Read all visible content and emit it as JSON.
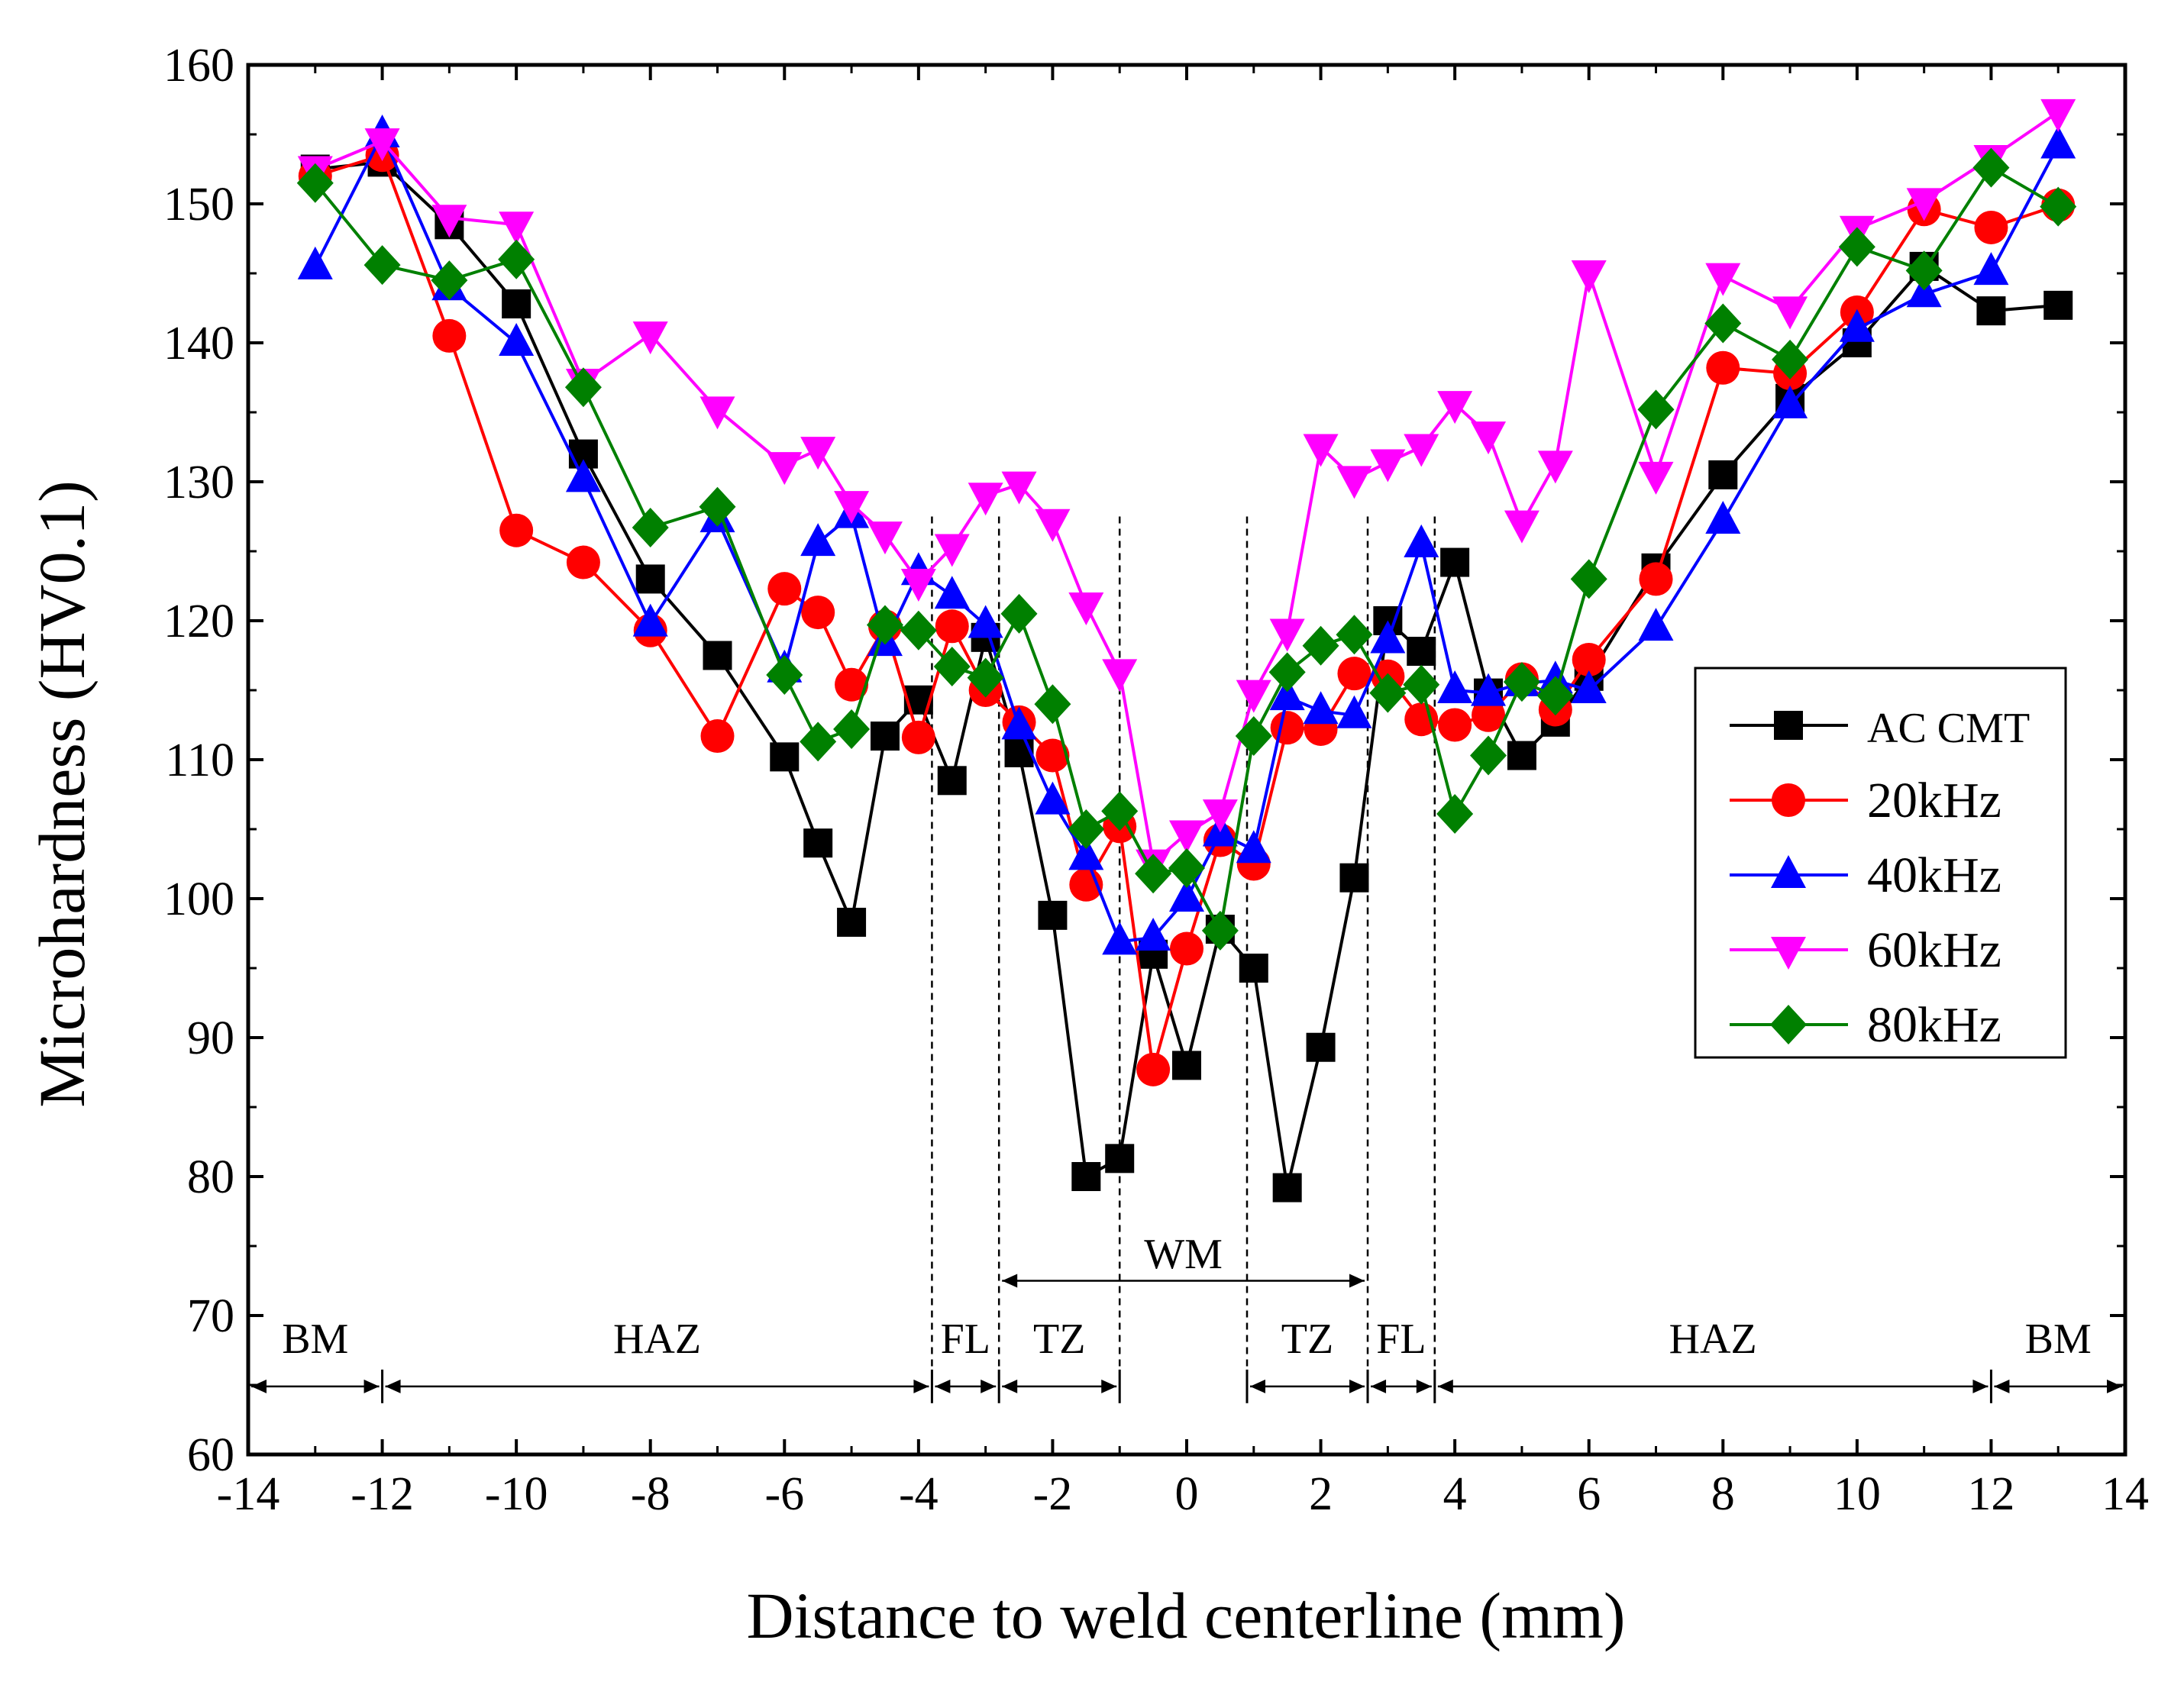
{
  "chart_data": {
    "type": "line",
    "title": "",
    "xlabel": "Distance to weld centerline (mm)",
    "ylabel": "Microhardness (HV0.1)",
    "xlim": [
      -14,
      14
    ],
    "ylim": [
      60,
      160
    ],
    "xticks": [
      -14,
      -12,
      -10,
      -8,
      -6,
      -4,
      -2,
      0,
      2,
      4,
      6,
      8,
      10,
      12,
      14
    ],
    "yticks": [
      60,
      70,
      80,
      90,
      100,
      110,
      120,
      130,
      140,
      150,
      160
    ],
    "legend_position": "right",
    "series": [
      {
        "name": "AC CMT",
        "color": "#000000",
        "marker": "square",
        "points": [
          [
            -13,
            152.5
          ],
          [
            -12,
            153
          ],
          [
            -11,
            148.5
          ],
          [
            -10,
            142.8
          ],
          [
            -9,
            132
          ],
          [
            -8,
            123
          ],
          [
            -7,
            117.5
          ],
          [
            -6,
            110.2
          ],
          [
            -5.5,
            104
          ],
          [
            -5,
            98.3
          ],
          [
            -4.5,
            111.7
          ],
          [
            -4,
            114.3
          ],
          [
            -3.5,
            108.5
          ],
          [
            -3,
            118.8
          ],
          [
            -2.5,
            110.5
          ],
          [
            -2,
            98.8
          ],
          [
            -1.5,
            80
          ],
          [
            -1,
            81.3
          ],
          [
            -0.5,
            96
          ],
          [
            0,
            88
          ],
          [
            0.5,
            97.8
          ],
          [
            1,
            95
          ],
          [
            1.5,
            79.2
          ],
          [
            2,
            89.3
          ],
          [
            2.5,
            101.5
          ],
          [
            3,
            120
          ],
          [
            3.5,
            117.8
          ],
          [
            4,
            124.2
          ],
          [
            4.5,
            114.8
          ],
          [
            5,
            110.3
          ],
          [
            5.5,
            112.7
          ],
          [
            6,
            116
          ],
          [
            7,
            123.8
          ],
          [
            8,
            130.5
          ],
          [
            9,
            136
          ],
          [
            10,
            140
          ],
          [
            11,
            145.5
          ],
          [
            12,
            142.3
          ],
          [
            13,
            142.7
          ]
        ]
      },
      {
        "name": "20kHz",
        "color": "#ff0000",
        "marker": "circle",
        "points": [
          [
            -13,
            152
          ],
          [
            -12,
            153.5
          ],
          [
            -11,
            140.5
          ],
          [
            -10,
            126.5
          ],
          [
            -9,
            124.2
          ],
          [
            -8,
            119.3
          ],
          [
            -7,
            111.7
          ],
          [
            -6,
            122.3
          ],
          [
            -5.5,
            120.6
          ],
          [
            -5,
            115.4
          ],
          [
            -4.5,
            119.6
          ],
          [
            -4,
            111.6
          ],
          [
            -3.5,
            119.6
          ],
          [
            -3,
            115
          ],
          [
            -2.5,
            112.7
          ],
          [
            -2,
            110.3
          ],
          [
            -1.5,
            101
          ],
          [
            -1,
            105.2
          ],
          [
            -0.5,
            87.7
          ],
          [
            0,
            96.4
          ],
          [
            0.5,
            104.2
          ],
          [
            1,
            102.5
          ],
          [
            1.5,
            112.3
          ],
          [
            2,
            112.2
          ],
          [
            2.5,
            116.2
          ],
          [
            3,
            116
          ],
          [
            3.5,
            112.9
          ],
          [
            4,
            112.5
          ],
          [
            4.5,
            113.2
          ],
          [
            5,
            115.8
          ],
          [
            5.5,
            113.6
          ],
          [
            6,
            117.2
          ],
          [
            7,
            123
          ],
          [
            8,
            138.2
          ],
          [
            9,
            137.8
          ],
          [
            10,
            142.2
          ],
          [
            11,
            149.6
          ],
          [
            12,
            148.3
          ],
          [
            13,
            149.9
          ]
        ]
      },
      {
        "name": "40kHz",
        "color": "#0000ff",
        "marker": "triangle-up",
        "points": [
          [
            -13,
            145.5
          ],
          [
            -12,
            155
          ],
          [
            -11,
            144
          ],
          [
            -10,
            140
          ],
          [
            -9,
            130.2
          ],
          [
            -8,
            119.8
          ],
          [
            -7,
            127.3
          ],
          [
            -6,
            116.5
          ],
          [
            -5.5,
            125.6
          ],
          [
            -5,
            127.6
          ],
          [
            -4.5,
            118.4
          ],
          [
            -4,
            123.5
          ],
          [
            -3.5,
            121.8
          ],
          [
            -3,
            119.7
          ],
          [
            -2.5,
            112.4
          ],
          [
            -2,
            107
          ],
          [
            -1.5,
            103
          ],
          [
            -1,
            96.9
          ],
          [
            -0.5,
            97.2
          ],
          [
            0,
            100
          ],
          [
            0.5,
            104.7
          ],
          [
            1,
            103.5
          ],
          [
            1.5,
            114.5
          ],
          [
            2,
            113.5
          ],
          [
            2.5,
            113.2
          ],
          [
            3,
            118.6
          ],
          [
            3.5,
            125.5
          ],
          [
            4,
            115
          ],
          [
            4.5,
            114.8
          ],
          [
            5,
            115.5
          ],
          [
            5.5,
            115.7
          ],
          [
            6,
            115
          ],
          [
            7,
            119.5
          ],
          [
            8,
            127.2
          ],
          [
            9,
            135.5
          ],
          [
            10,
            141
          ],
          [
            11,
            143.5
          ],
          [
            12,
            145.1
          ],
          [
            13,
            154.2
          ]
        ]
      },
      {
        "name": "60kHz",
        "color": "#ff00ff",
        "marker": "triangle-down",
        "points": [
          [
            -13,
            152.5
          ],
          [
            -12,
            154.5
          ],
          [
            -11,
            149
          ],
          [
            -10,
            148.5
          ],
          [
            -9,
            137.2
          ],
          [
            -8,
            140.6
          ],
          [
            -7,
            135.2
          ],
          [
            -6,
            131.2
          ],
          [
            -5.5,
            132.3
          ],
          [
            -5,
            128.4
          ],
          [
            -4.5,
            126.2
          ],
          [
            -4,
            122.8
          ],
          [
            -3.5,
            125.3
          ],
          [
            -3,
            129
          ],
          [
            -2.5,
            129.8
          ],
          [
            -2,
            127.1
          ],
          [
            -1.5,
            121.1
          ],
          [
            -1,
            116.3
          ],
          [
            -0.5,
            102.6
          ],
          [
            0,
            104.7
          ],
          [
            0.5,
            106.2
          ],
          [
            1,
            114.8
          ],
          [
            1.5,
            119.2
          ],
          [
            2,
            132.5
          ],
          [
            2.5,
            130.2
          ],
          [
            3,
            131.4
          ],
          [
            3.5,
            132.5
          ],
          [
            4,
            135.6
          ],
          [
            4.5,
            133.4
          ],
          [
            5,
            127
          ],
          [
            5.5,
            131.3
          ],
          [
            6,
            145
          ],
          [
            7,
            130.5
          ],
          [
            8,
            144.8
          ],
          [
            9,
            142.4
          ],
          [
            10,
            148.2
          ],
          [
            11,
            150.2
          ],
          [
            12,
            153.3
          ],
          [
            13,
            156.6
          ]
        ]
      },
      {
        "name": "80kHz",
        "color": "#008000",
        "marker": "diamond",
        "points": [
          [
            -13,
            151.5
          ],
          [
            -12,
            145.6
          ],
          [
            -11,
            144.5
          ],
          [
            -10,
            146
          ],
          [
            -9,
            136.8
          ],
          [
            -8,
            126.7
          ],
          [
            -7,
            128.2
          ],
          [
            -6,
            116.1
          ],
          [
            -5.5,
            111.3
          ],
          [
            -5,
            112.2
          ],
          [
            -4.5,
            119.7
          ],
          [
            -4,
            119.3
          ],
          [
            -3.5,
            116.7
          ],
          [
            -3,
            115.9
          ],
          [
            -2.5,
            120.5
          ],
          [
            -2,
            114
          ],
          [
            -1.5,
            105
          ],
          [
            -1,
            106.3
          ],
          [
            -0.5,
            101.8
          ],
          [
            0,
            102.2
          ],
          [
            0.5,
            97.7
          ],
          [
            1,
            111.7
          ],
          [
            1.5,
            116.3
          ],
          [
            2,
            118.2
          ],
          [
            2.5,
            119
          ],
          [
            3,
            114.8
          ],
          [
            3.5,
            115.4
          ],
          [
            4,
            106.1
          ],
          [
            4.5,
            110.3
          ],
          [
            5,
            115.6
          ],
          [
            5.5,
            114.6
          ],
          [
            6,
            123
          ],
          [
            7,
            135.2
          ],
          [
            8,
            141.4
          ],
          [
            9,
            138.8
          ],
          [
            10,
            146.9
          ],
          [
            11,
            145.2
          ],
          [
            12,
            152.6
          ],
          [
            13,
            149.8
          ]
        ]
      }
    ],
    "zone_markers": [
      -12,
      -3.8,
      -2.8,
      -1,
      0.9,
      2.7,
      3.7,
      12
    ],
    "zone_vlines": [
      -3.8,
      -2.8,
      -1,
      0.9,
      2.7,
      3.7
    ],
    "zones": [
      {
        "label": "BM",
        "from": -14,
        "to": -12
      },
      {
        "label": "HAZ",
        "from": -12,
        "to": -3.8
      },
      {
        "label": "FL",
        "from": -3.8,
        "to": -2.8
      },
      {
        "label": "TZ",
        "from": -2.8,
        "to": -1
      },
      {
        "label": "TZ",
        "from": 0.9,
        "to": 2.7
      },
      {
        "label": "FL",
        "from": 2.7,
        "to": 3.7
      },
      {
        "label": "HAZ",
        "from": 3.7,
        "to": 12
      },
      {
        "label": "BM",
        "from": 12,
        "to": 14
      }
    ],
    "wm_region": {
      "label": "WM",
      "from": -2.8,
      "to": 2.7
    }
  }
}
